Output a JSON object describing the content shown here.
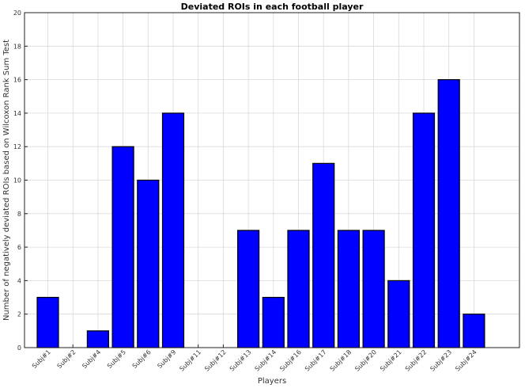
{
  "chart_data": {
    "type": "bar",
    "title": "Deviated ROIs in each football player",
    "xlabel": "Players",
    "ylabel": "Number of negatively deviated ROIs based on Wilcoxon Rank Sum Test",
    "ylim": [
      0,
      20
    ],
    "yticks": [
      0,
      2,
      4,
      6,
      8,
      10,
      12,
      14,
      16,
      18,
      20
    ],
    "grid": true,
    "categories": [
      "Subj#1",
      "Subj#2",
      "Subj#4",
      "Subj#5",
      "Subj#6",
      "Subj#9",
      "Subj#11",
      "Subj#12",
      "Subj#13",
      "Subj#14",
      "Subj#16",
      "Subj#17",
      "Subj#18",
      "Subj#20",
      "Subj#21",
      "Subj#22",
      "Subj#23",
      "Subj#24"
    ],
    "values": [
      3,
      0,
      1,
      12,
      10,
      14,
      0,
      0,
      7,
      3,
      7,
      11,
      7,
      7,
      4,
      14,
      16,
      2
    ],
    "bar_color": "#0000ff"
  }
}
